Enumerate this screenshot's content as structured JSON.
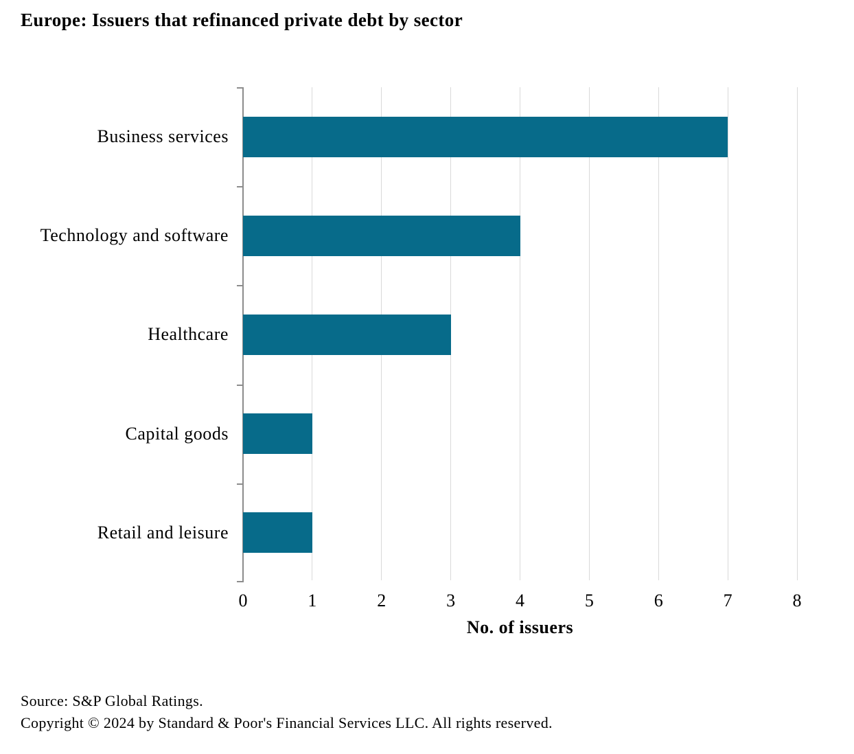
{
  "title": "Europe: Issuers that refinanced private debt by sector",
  "chart_data": {
    "type": "bar",
    "orientation": "horizontal",
    "title": "Europe: Issuers that refinanced private debt by sector",
    "categories": [
      "Business services",
      "Technology and software",
      "Healthcare",
      "Capital goods",
      "Retail and leisure"
    ],
    "values": [
      7,
      4,
      3,
      1,
      1
    ],
    "xlabel": "No. of issuers",
    "ylabel": "",
    "xlim": [
      0,
      8
    ],
    "xticks": [
      0,
      1,
      2,
      3,
      4,
      5,
      6,
      7,
      8
    ],
    "grid": "vertical-gridlines-on",
    "legend": "none",
    "bar_color": "#076b8a",
    "gridline_color": "#d9d9d9",
    "axis_color": "#8c8c8c"
  },
  "footer": {
    "source": "Source: S&P Global Ratings.",
    "copyright": "Copyright © 2024 by Standard & Poor's Financial Services LLC. All rights reserved."
  }
}
